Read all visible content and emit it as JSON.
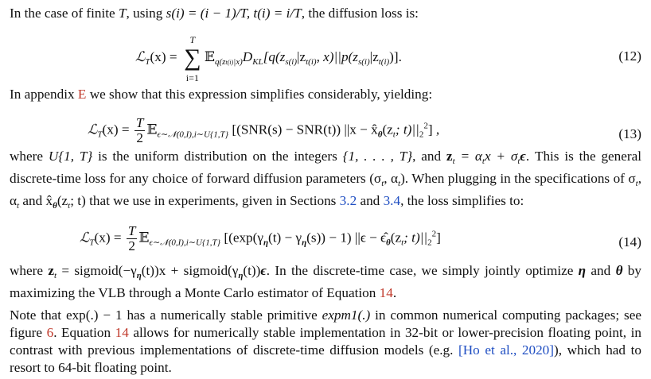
{
  "intro": {
    "before": "In the case of finite ",
    "T": "T",
    "mid": ", using ",
    "defs": "s(i) = (i − 1)/T, t(i) = i/T",
    "after": ", the diffusion loss is:"
  },
  "eq12": {
    "lhs": "ℒ",
    "lhs_sub": "T",
    "lhs_arg": "(x) =",
    "sum_top": "T",
    "sum_bot": "i=1",
    "sum_sym": "∑",
    "expect": "𝔼",
    "expect_sub": "q(z",
    "expect_sub2": "t(i)",
    "expect_sub3": "|x)",
    "body": "D",
    "body_sub": "KL",
    "rhs": "[q(z",
    "rhs_s": "s(i)",
    "rhs_mid": "|z",
    "rhs_t": "t(i)",
    "rhs_x": ", x)||p(z",
    "rhs_s2": "s(i)",
    "rhs_mid2": "|z",
    "rhs_t2": "t(i)",
    "rhs_end": ")].",
    "number": "(12)"
  },
  "p_appendix": {
    "before": "In appendix ",
    "link": "E",
    "after": " we show that this expression simplifies considerably, yielding:"
  },
  "eq13": {
    "lhs": "ℒ",
    "lhs_sub": "T",
    "lhs_arg": "(x) =",
    "frac_num": "T",
    "frac_den": "2",
    "expect": "𝔼",
    "expect_sub": "ϵ∼𝒩(0,I),i∼U{1,T}",
    "body": "[(SNR(s) − SNR(t)) ||x − x̂",
    "theta": "θ",
    "body2": "(z",
    "t": "t",
    "body3": "; t)||",
    "sq_sub": "2",
    "sq_sup": "2",
    "end": "] ,",
    "number": "(13)"
  },
  "p_where1": {
    "l1a": "where ",
    "u": "U{1, T}",
    "l1b": " is the uniform distribution on the integers ",
    "set": "{1, . . . , T}",
    "l1c": ", and ",
    "zt": "z",
    "zt_sub": "t",
    "l1d": " = α",
    "l1d_sub": "t",
    "l1e": "x + σ",
    "l1e_sub": "t",
    "l1f": "ϵ",
    "l1g": ". This is the general discrete-time loss for any choice of forward diffusion parameters (σ",
    "l1g_sub": "t",
    "l1h": ", α",
    "l1h_sub": "t",
    "l1i": "). When plugging in the specifications of σ",
    "l1i_sub": "t",
    "l1j": ", α",
    "l1j_sub": "t",
    "l1k": " and x̂",
    "l1k_sub": "θ",
    "l1l": "(z",
    "l1l_sub": "t",
    "l1m": "; t) that we use in experiments, given in Sections ",
    "sec1": "3.2",
    "l1n": " and ",
    "sec2": "3.4",
    "l1o": ", the loss simplifies to:"
  },
  "eq14": {
    "lhs": "ℒ",
    "lhs_sub": "T",
    "lhs_arg": "(x) =",
    "frac_num": "T",
    "frac_den": "2",
    "expect": "𝔼",
    "expect_sub": "ϵ∼𝒩(0,I),i∼U{1,T}",
    "body": "[(exp(γ",
    "eta": "η",
    "body2": "(t) − γ",
    "eta2": "η",
    "body3": "(s)) − 1) ||ϵ − ϵ̂",
    "theta": "θ",
    "body4": "(z",
    "t": "t",
    "body5": "; t)||",
    "sq_sub": "2",
    "sq_sup": "2",
    "end": "]",
    "number": "(14)"
  },
  "p_where2": {
    "a": "where ",
    "zt": "z",
    "zt_sub": "t",
    "b": " = sigmoid(−γ",
    "b_sub": "η",
    "c": "(t))x + sigmoid(γ",
    "c_sub": "η",
    "d": "(t))",
    "eps": "ϵ",
    "e": ". In the discrete-time case, we simply jointly optimize ",
    "eta": "η",
    "f": " and ",
    "theta": "θ",
    "g": " by maximizing the VLB through a Monte Carlo estimator of Equation ",
    "eqref": "14",
    "h": "."
  },
  "p_note": {
    "a": "Note that exp(.) − 1 has a numerically stable primitive ",
    "expm1": "expm1(.)",
    "b": " in common numerical computing packages; see figure ",
    "fig": "6",
    "c": ". Equation ",
    "eqref": "14",
    "d": " allows for numerically stable implementation in 32-bit or lower-precision floating point, in contrast with previous implementations of discrete-time diffusion models (e.g. ",
    "cite": "[Ho et al., 2020]",
    "e": "), which had to resort to 64-bit floating point."
  },
  "colors": {
    "link_red": "#c0392b",
    "link_blue": "#1f4ec2",
    "text": "#111111"
  }
}
